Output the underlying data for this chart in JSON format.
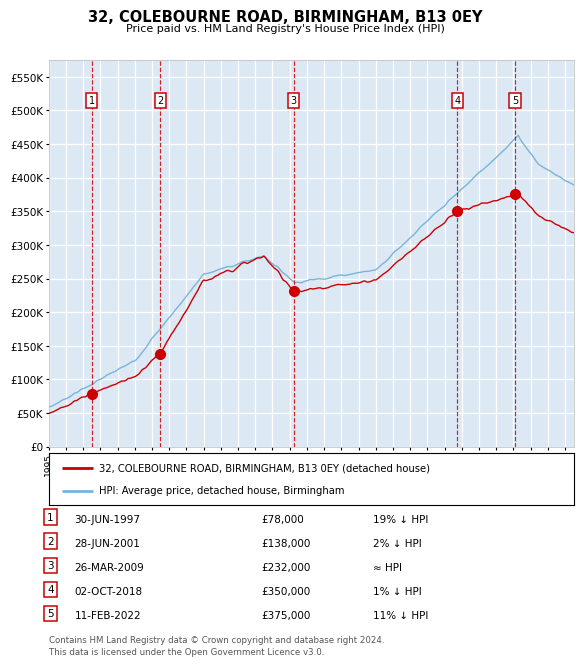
{
  "title": "32, COLEBOURNE ROAD, BIRMINGHAM, B13 0EY",
  "subtitle": "Price paid vs. HM Land Registry's House Price Index (HPI)",
  "hpi_line_color": "#7ab4d8",
  "price_line_color": "#cc0000",
  "marker_color": "#cc0000",
  "vline_color": "#cc0000",
  "plot_bg_color": "#dce9f5",
  "grid_color": "#ffffff",
  "ylim": [
    0,
    575000
  ],
  "yticks": [
    0,
    50000,
    100000,
    150000,
    200000,
    250000,
    300000,
    350000,
    400000,
    450000,
    500000,
    550000
  ],
  "sales": [
    {
      "label": "1",
      "date_num": 1997.496,
      "price": 78000,
      "date_str": "30-JUN-1997",
      "pct": "19% ↓ HPI"
    },
    {
      "label": "2",
      "date_num": 2001.496,
      "price": 138000,
      "date_str": "28-JUN-2001",
      "pct": "2% ↓ HPI"
    },
    {
      "label": "3",
      "date_num": 2009.23,
      "price": 232000,
      "date_str": "26-MAR-2009",
      "pct": "≈ HPI"
    },
    {
      "label": "4",
      "date_num": 2018.75,
      "price": 350000,
      "date_str": "02-OCT-2018",
      "pct": "1% ↓ HPI"
    },
    {
      "label": "5",
      "date_num": 2022.11,
      "price": 375000,
      "date_str": "11-FEB-2022",
      "pct": "11% ↓ HPI"
    }
  ],
  "legend_line1": "32, COLEBOURNE ROAD, BIRMINGHAM, B13 0EY (detached house)",
  "legend_line2": "HPI: Average price, detached house, Birmingham",
  "footer": "Contains HM Land Registry data © Crown copyright and database right 2024.\nThis data is licensed under the Open Government Licence v3.0.",
  "xmin": 1995.0,
  "xmax": 2025.5
}
